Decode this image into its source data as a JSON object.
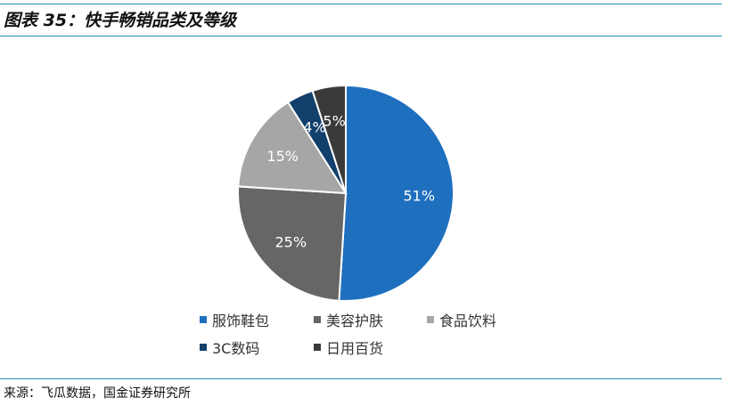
{
  "figure": {
    "title": "图表 35：快手畅销品类及等级",
    "source": "来源：飞瓜数据，国金证券研究所"
  },
  "chart_data": {
    "type": "pie",
    "title": "",
    "categories": [
      "服饰鞋包",
      "美容护肤",
      "食品饮料",
      "3C数码",
      "日用百货"
    ],
    "values": [
      51,
      25,
      15,
      4,
      5
    ],
    "labels": [
      "51%",
      "25%",
      "15%",
      "4%",
      "5%"
    ],
    "colors": [
      "#1f6fbf",
      "#666666",
      "#a6a6a6",
      "#123f6b",
      "#3a3a3a"
    ],
    "label_colors": [
      "#ffffff",
      "#ffffff",
      "#ffffff",
      "#ffffff",
      "#ffffff"
    ],
    "start_angle_deg": 0,
    "direction": "clockwise",
    "legend_position": "bottom"
  }
}
